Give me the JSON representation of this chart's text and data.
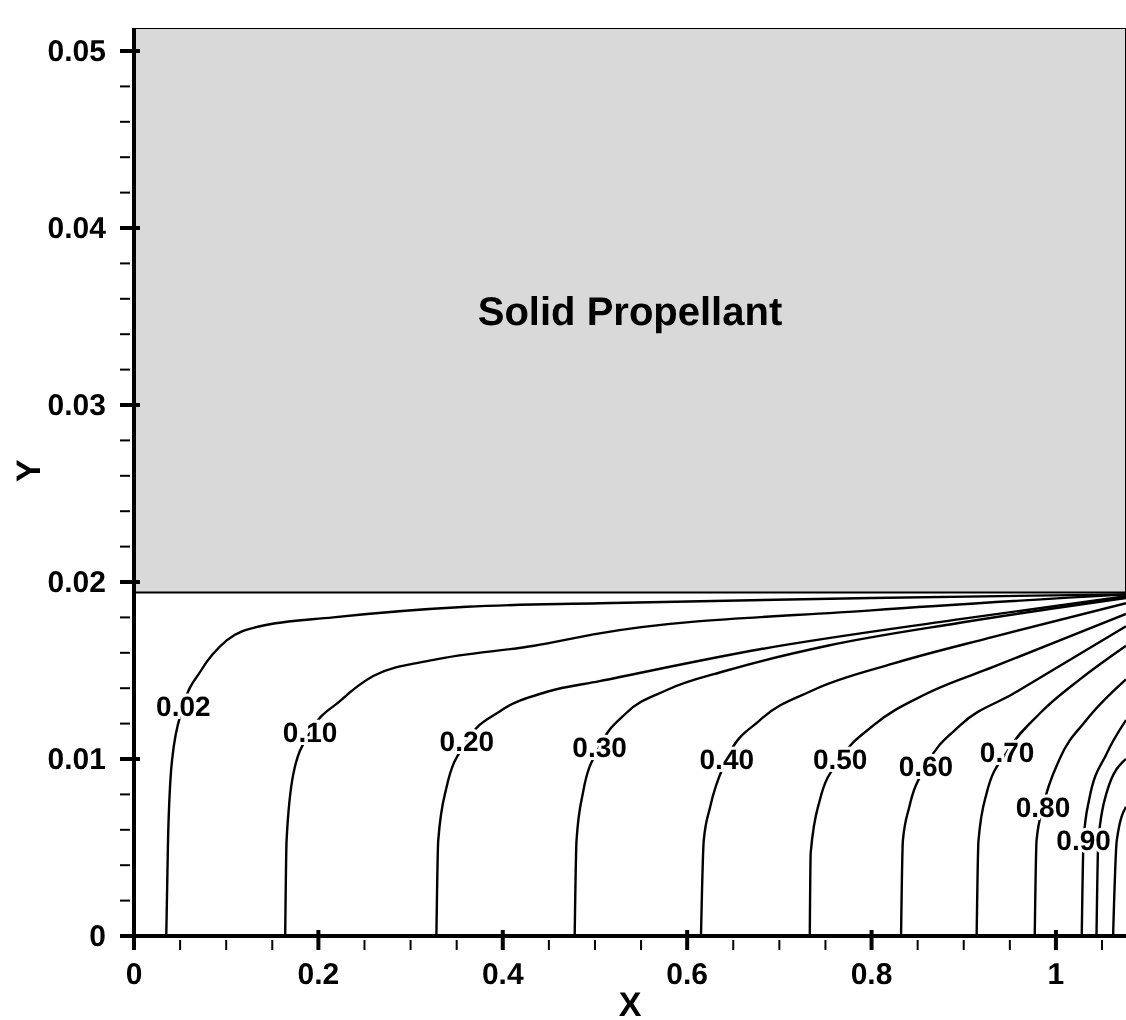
{
  "chart_data": {
    "type": "line",
    "xlabel": "X",
    "ylabel": "Y",
    "xlim": [
      0,
      1.076
    ],
    "ylim": [
      0,
      0.0513
    ],
    "xticks": [
      0,
      {
        "value": 0.05,
        "label": null
      },
      {
        "value": 0.1,
        "label": null
      },
      {
        "value": 0.15,
        "label": null
      },
      {
        "value": 0.2,
        "label": "0.2"
      },
      {
        "value": 0.25,
        "label": null
      },
      {
        "value": 0.3,
        "label": null
      },
      {
        "value": 0.35,
        "label": null
      },
      {
        "value": 0.4,
        "label": "0.4"
      },
      {
        "value": 0.45,
        "label": null
      },
      {
        "value": 0.5,
        "label": null
      },
      {
        "value": 0.55,
        "label": null
      },
      {
        "value": 0.6,
        "label": "0.6"
      },
      {
        "value": 0.65,
        "label": null
      },
      {
        "value": 0.7,
        "label": null
      },
      {
        "value": 0.75,
        "label": null
      },
      {
        "value": 0.8,
        "label": "0.8"
      },
      {
        "value": 0.85,
        "label": null
      },
      {
        "value": 0.9,
        "label": null
      },
      {
        "value": 0.95,
        "label": null
      },
      1,
      {
        "value": 1.05,
        "label": null
      }
    ],
    "yticks": [
      0,
      {
        "value": 0.002,
        "label": null
      },
      {
        "value": 0.004,
        "label": null
      },
      {
        "value": 0.006,
        "label": null
      },
      {
        "value": 0.008,
        "label": null
      },
      {
        "value": 0.01,
        "label": "0.01"
      },
      {
        "value": 0.012,
        "label": null
      },
      {
        "value": 0.014,
        "label": null
      },
      {
        "value": 0.016,
        "label": null
      },
      {
        "value": 0.018,
        "label": null
      },
      {
        "value": 0.02,
        "label": "0.02"
      },
      {
        "value": 0.022,
        "label": null
      },
      {
        "value": 0.024,
        "label": null
      },
      {
        "value": 0.026,
        "label": null
      },
      {
        "value": 0.028,
        "label": null
      },
      {
        "value": 0.03,
        "label": "0.03"
      },
      {
        "value": 0.032,
        "label": null
      },
      {
        "value": 0.034,
        "label": null
      },
      {
        "value": 0.036,
        "label": null
      },
      {
        "value": 0.038,
        "label": null
      },
      {
        "value": 0.04,
        "label": "0.04"
      },
      {
        "value": 0.042,
        "label": null
      },
      {
        "value": 0.044,
        "label": null
      },
      {
        "value": 0.046,
        "label": null
      },
      {
        "value": 0.048,
        "label": null
      },
      {
        "value": 0.05,
        "label": "0.05"
      }
    ],
    "grid": false,
    "legend": false,
    "marker": "none",
    "line_style": "solid",
    "bands": [
      {
        "axis": "y",
        "from": 0.0194,
        "to": 0.0513,
        "label": "Solid Propellant",
        "color": "#d9d9d9"
      }
    ],
    "series": [
      {
        "name": "0.02",
        "color": "#000000",
        "x": [
          0.035,
          0.0369,
          0.0412,
          0.0535,
          0.0727,
          0.1005,
          0.1367,
          0.216,
          0.361,
          0.505,
          0.8,
          1.076
        ],
        "values": [
          0,
          0.0054,
          0.0099,
          0.013,
          0.015,
          0.0167,
          0.0175,
          0.018,
          0.0186,
          0.0188,
          0.0191,
          0.0193
        ]
      },
      {
        "name": "0.10",
        "color": "#000000",
        "x": [
          0.164,
          0.1655,
          0.173,
          0.191,
          0.224,
          0.26,
          0.325,
          0.434,
          0.505,
          0.8,
          1.076
        ],
        "values": [
          0,
          0.0054,
          0.0092,
          0.0115,
          0.0133,
          0.0147,
          0.0156,
          0.0164,
          0.0171,
          0.0184,
          0.0193
        ]
      },
      {
        "name": "0.20",
        "color": "#000000",
        "x": [
          0.328,
          0.33,
          0.339,
          0.361,
          0.397,
          0.448,
          0.505,
          0.679,
          0.896,
          1.076
        ],
        "values": [
          0,
          0.0054,
          0.0084,
          0.011,
          0.0127,
          0.0138,
          0.0144,
          0.0162,
          0.0179,
          0.0192
        ]
      },
      {
        "name": "0.30",
        "color": "#000000",
        "x": [
          0.478,
          0.48,
          0.487,
          0.505,
          0.534,
          0.578,
          0.643,
          0.752,
          0.896,
          1.076
        ],
        "values": [
          0,
          0.0054,
          0.0081,
          0.0107,
          0.0126,
          0.0139,
          0.015,
          0.0164,
          0.0177,
          0.0191
        ]
      },
      {
        "name": "0.40",
        "color": "#000000",
        "x": [
          0.615,
          0.618,
          0.625,
          0.643,
          0.679,
          0.737,
          0.824,
          0.932,
          1.076
        ],
        "values": [
          0,
          0.0054,
          0.0073,
          0.01,
          0.0122,
          0.0139,
          0.0154,
          0.0169,
          0.0188
        ]
      },
      {
        "name": "0.50",
        "color": "#000000",
        "x": [
          0.733,
          0.734,
          0.744,
          0.766,
          0.802,
          0.86,
          0.932,
          1.076
        ],
        "values": [
          0,
          0.0047,
          0.0077,
          0.01,
          0.0119,
          0.0137,
          0.0152,
          0.0182
        ]
      },
      {
        "name": "0.60",
        "color": "#000000",
        "x": [
          0.832,
          0.834,
          0.841,
          0.859,
          0.896,
          0.954,
          1.076
        ],
        "values": [
          0,
          0.0054,
          0.0073,
          0.0096,
          0.0119,
          0.0137,
          0.0175
        ]
      },
      {
        "name": "0.70",
        "color": "#000000",
        "x": [
          0.914,
          0.916,
          0.925,
          0.947,
          0.983,
          1.026,
          1.076
        ],
        "values": [
          0,
          0.0054,
          0.0081,
          0.0104,
          0.0126,
          0.0145,
          0.0164
        ]
      },
      {
        "name": "0.80",
        "color": "#000000",
        "x": [
          0.977,
          0.979,
          0.986,
          1.004,
          1.033,
          1.076
        ],
        "values": [
          0,
          0.0054,
          0.0073,
          0.01,
          0.0122,
          0.0145
        ]
      },
      {
        "name": "0.90",
        "color": "#000000",
        "x": [
          1.028,
          1.03,
          1.036,
          1.055,
          1.076
        ],
        "values": [
          0,
          0.0054,
          0.0077,
          0.0103,
          0.0122
        ]
      },
      {
        "color": "#000000",
        "x": [
          1.044,
          1.046,
          1.055,
          1.076
        ],
        "values": [
          0,
          0.0054,
          0.0081,
          0.01
        ]
      },
      {
        "color": "#000000",
        "x": [
          1.062,
          1.066,
          1.076
        ],
        "values": [
          0,
          0.0054,
          0.0073
        ]
      }
    ]
  }
}
